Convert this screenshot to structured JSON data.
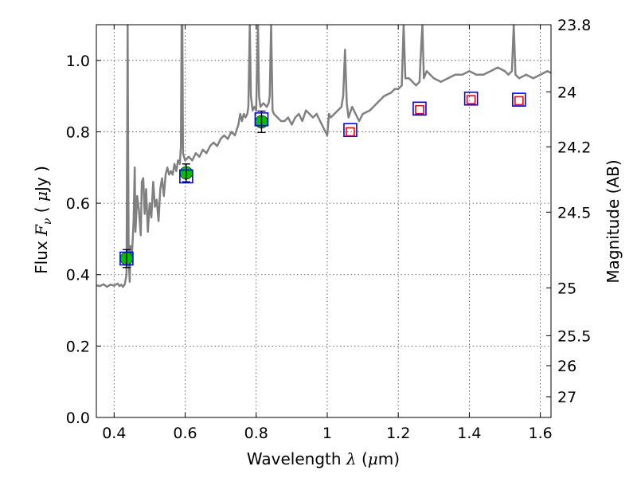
{
  "chart_data": {
    "type": "scatter",
    "xlabel": {
      "prefix": "Wavelength",
      "symbol": "λ",
      "unit_open": " (",
      "unit_mu": "μ",
      "unit_rest": "m)"
    },
    "ylabel": {
      "prefix": "Flux",
      "symbol": "F",
      "sub": "ν",
      "unit_open": "( ",
      "unit_mu": "μ",
      "unit_rest": "Jy )"
    },
    "y2label": "Magnitude (AB)",
    "xlim": [
      0.35,
      1.63
    ],
    "ylim": [
      0.0,
      1.1
    ],
    "grid": true,
    "x_ticks": [
      0.4,
      0.6,
      0.8,
      1.0,
      1.2,
      1.4,
      1.6
    ],
    "x_tick_labels": [
      "0.4",
      "0.6",
      "0.8",
      "1",
      "1.2",
      "1.4",
      "1.6"
    ],
    "y_ticks": [
      0.0,
      0.2,
      0.4,
      0.6,
      0.8,
      1.0
    ],
    "y_tick_labels": [
      "0.0",
      "0.2",
      "0.4",
      "0.6",
      "0.8",
      "1.0"
    ],
    "y2_ticks": [
      {
        "label": "23.8",
        "flux": 1.1
      },
      {
        "label": "24",
        "flux": 0.912
      },
      {
        "label": "24.2",
        "flux": 0.758
      },
      {
        "label": "24.5",
        "flux": 0.575
      },
      {
        "label": "25",
        "flux": 0.363
      },
      {
        "label": "25.5",
        "flux": 0.229
      },
      {
        "label": "26",
        "flux": 0.145
      },
      {
        "label": "27",
        "flux": 0.058
      }
    ],
    "series": [
      {
        "kind": "line",
        "color": "#808080",
        "points": [
          [
            0.35,
            0.37
          ],
          [
            0.36,
            0.368
          ],
          [
            0.37,
            0.373
          ],
          [
            0.38,
            0.366
          ],
          [
            0.39,
            0.372
          ],
          [
            0.4,
            0.369
          ],
          [
            0.41,
            0.375
          ],
          [
            0.415,
            0.368
          ],
          [
            0.42,
            0.372
          ],
          [
            0.425,
            0.366
          ],
          [
            0.43,
            0.373
          ],
          [
            0.435,
            0.4
          ],
          [
            0.437,
            0.8
          ],
          [
            0.438,
            1.1
          ],
          [
            0.439,
            0.85
          ],
          [
            0.441,
            0.45
          ],
          [
            0.444,
            0.38
          ],
          [
            0.446,
            0.48
          ],
          [
            0.45,
            0.45
          ],
          [
            0.455,
            0.55
          ],
          [
            0.458,
            0.7
          ],
          [
            0.46,
            0.52
          ],
          [
            0.465,
            0.62
          ],
          [
            0.47,
            0.58
          ],
          [
            0.475,
            0.51
          ],
          [
            0.478,
            0.66
          ],
          [
            0.482,
            0.67
          ],
          [
            0.486,
            0.57
          ],
          [
            0.49,
            0.64
          ],
          [
            0.495,
            0.52
          ],
          [
            0.5,
            0.6
          ],
          [
            0.505,
            0.56
          ],
          [
            0.51,
            0.66
          ],
          [
            0.515,
            0.59
          ],
          [
            0.52,
            0.61
          ],
          [
            0.525,
            0.55
          ],
          [
            0.53,
            0.64
          ],
          [
            0.535,
            0.67
          ],
          [
            0.54,
            0.62
          ],
          [
            0.545,
            0.68
          ],
          [
            0.55,
            0.7
          ],
          [
            0.555,
            0.68
          ],
          [
            0.56,
            0.69
          ],
          [
            0.565,
            0.68
          ],
          [
            0.57,
            0.71
          ],
          [
            0.575,
            0.69
          ],
          [
            0.58,
            0.72
          ],
          [
            0.585,
            0.71
          ],
          [
            0.588,
            0.76
          ],
          [
            0.59,
            1.1
          ],
          [
            0.592,
            1.1
          ],
          [
            0.594,
            0.74
          ],
          [
            0.6,
            0.72
          ],
          [
            0.61,
            0.73
          ],
          [
            0.62,
            0.72
          ],
          [
            0.63,
            0.74
          ],
          [
            0.64,
            0.73
          ],
          [
            0.65,
            0.75
          ],
          [
            0.66,
            0.74
          ],
          [
            0.67,
            0.76
          ],
          [
            0.68,
            0.77
          ],
          [
            0.69,
            0.76
          ],
          [
            0.7,
            0.78
          ],
          [
            0.71,
            0.79
          ],
          [
            0.72,
            0.78
          ],
          [
            0.73,
            0.8
          ],
          [
            0.74,
            0.79
          ],
          [
            0.75,
            0.82
          ],
          [
            0.755,
            0.85
          ],
          [
            0.76,
            0.83
          ],
          [
            0.765,
            0.85
          ],
          [
            0.77,
            0.84
          ],
          [
            0.775,
            0.85
          ],
          [
            0.778,
            0.87
          ],
          [
            0.782,
            1.1
          ],
          [
            0.785,
            0.9
          ],
          [
            0.79,
            0.86
          ],
          [
            0.795,
            0.87
          ],
          [
            0.8,
            0.86
          ],
          [
            0.805,
            1.1
          ],
          [
            0.808,
            0.9
          ],
          [
            0.812,
            0.87
          ],
          [
            0.82,
            0.88
          ],
          [
            0.83,
            0.87
          ],
          [
            0.835,
            0.88
          ],
          [
            0.838,
            0.9
          ],
          [
            0.842,
            1.1
          ],
          [
            0.846,
            0.86
          ],
          [
            0.85,
            0.85
          ],
          [
            0.86,
            0.84
          ],
          [
            0.87,
            0.83
          ],
          [
            0.88,
            0.83
          ],
          [
            0.89,
            0.84
          ],
          [
            0.9,
            0.82
          ],
          [
            0.91,
            0.84
          ],
          [
            0.92,
            0.85
          ],
          [
            0.93,
            0.83
          ],
          [
            0.94,
            0.86
          ],
          [
            0.95,
            0.85
          ],
          [
            0.96,
            0.84
          ],
          [
            0.97,
            0.85
          ],
          [
            0.98,
            0.83
          ],
          [
            0.99,
            0.81
          ],
          [
            1.0,
            0.79
          ],
          [
            1.005,
            0.85
          ],
          [
            1.01,
            0.84
          ],
          [
            1.02,
            0.85
          ],
          [
            1.03,
            0.86
          ],
          [
            1.04,
            0.87
          ],
          [
            1.045,
            0.9
          ],
          [
            1.05,
            1.03
          ],
          [
            1.055,
            0.88
          ],
          [
            1.06,
            0.84
          ],
          [
            1.07,
            0.87
          ],
          [
            1.08,
            0.85
          ],
          [
            1.09,
            0.83
          ],
          [
            1.1,
            0.85
          ],
          [
            1.12,
            0.86
          ],
          [
            1.14,
            0.88
          ],
          [
            1.16,
            0.9
          ],
          [
            1.18,
            0.91
          ],
          [
            1.19,
            0.92
          ],
          [
            1.2,
            0.92
          ],
          [
            1.21,
            0.93
          ],
          [
            1.215,
            1.1
          ],
          [
            1.22,
            0.95
          ],
          [
            1.23,
            0.95
          ],
          [
            1.24,
            0.94
          ],
          [
            1.25,
            0.93
          ],
          [
            1.26,
            0.94
          ],
          [
            1.265,
            1.05
          ],
          [
            1.268,
            1.1
          ],
          [
            1.272,
            0.95
          ],
          [
            1.28,
            0.97
          ],
          [
            1.29,
            0.96
          ],
          [
            1.3,
            0.95
          ],
          [
            1.32,
            0.94
          ],
          [
            1.34,
            0.95
          ],
          [
            1.36,
            0.96
          ],
          [
            1.38,
            0.96
          ],
          [
            1.4,
            0.97
          ],
          [
            1.42,
            0.96
          ],
          [
            1.44,
            0.96
          ],
          [
            1.46,
            0.97
          ],
          [
            1.48,
            0.98
          ],
          [
            1.5,
            0.97
          ],
          [
            1.51,
            0.96
          ],
          [
            1.52,
            0.97
          ],
          [
            1.525,
            1.1
          ],
          [
            1.53,
            0.96
          ],
          [
            1.54,
            0.95
          ],
          [
            1.56,
            0.96
          ],
          [
            1.58,
            0.95
          ],
          [
            1.6,
            0.96
          ],
          [
            1.62,
            0.97
          ],
          [
            1.63,
            0.965
          ]
        ]
      },
      {
        "kind": "points",
        "marker": "circle",
        "color": "#00c000",
        "points": [
          {
            "x": 0.435,
            "y": 0.445,
            "yerr": 0.025
          },
          {
            "x": 0.603,
            "y": 0.685,
            "yerr": 0.025
          },
          {
            "x": 0.815,
            "y": 0.828,
            "yerr": 0.03
          }
        ]
      },
      {
        "kind": "points",
        "marker": "open-square",
        "color": "#0000ff",
        "points": [
          {
            "x": 0.435,
            "y": 0.445
          },
          {
            "x": 0.603,
            "y": 0.675
          },
          {
            "x": 0.815,
            "y": 0.835
          },
          {
            "x": 1.065,
            "y": 0.805
          },
          {
            "x": 1.26,
            "y": 0.865
          },
          {
            "x": 1.405,
            "y": 0.893
          },
          {
            "x": 1.54,
            "y": 0.89
          }
        ]
      },
      {
        "kind": "points",
        "marker": "open-square",
        "color": "#ff0000",
        "points": [
          {
            "x": 1.065,
            "y": 0.8
          },
          {
            "x": 1.26,
            "y": 0.862
          },
          {
            "x": 1.405,
            "y": 0.89
          },
          {
            "x": 1.54,
            "y": 0.887
          }
        ]
      }
    ]
  }
}
